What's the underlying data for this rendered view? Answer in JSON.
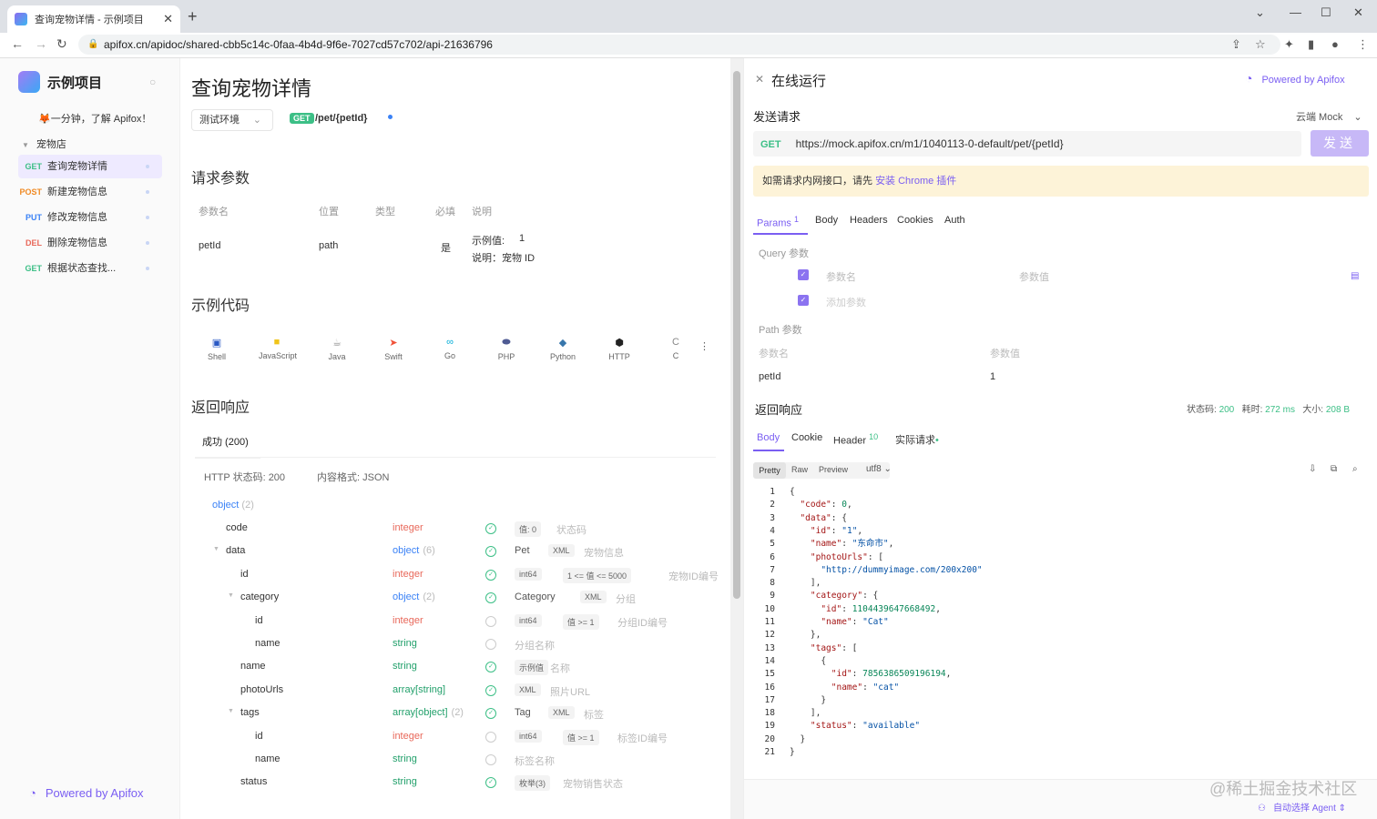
{
  "browser": {
    "tab_title": "查询宠物详情 - 示例项目",
    "url": "apifox.cn/apidoc/shared-cbb5c14c-0faa-4b4d-9f6e-7027cd57c702/api-21636796"
  },
  "sidebar": {
    "project": "示例项目",
    "intro": "🦊一分钟，了解 Apifox！",
    "folder": "宠物店",
    "items": [
      {
        "method": "GET",
        "label": "查询宠物详情",
        "color": "#3cbf86"
      },
      {
        "method": "POST",
        "label": "新建宠物信息",
        "color": "#f08a24"
      },
      {
        "method": "PUT",
        "label": "修改宠物信息",
        "color": "#3b82f6"
      },
      {
        "method": "DEL",
        "label": "删除宠物信息",
        "color": "#e8685a"
      },
      {
        "method": "GET",
        "label": "根据状态查找...",
        "color": "#3cbf86"
      }
    ],
    "powered": "Powered by Apifox"
  },
  "main": {
    "title": "查询宠物详情",
    "env": "测试环境",
    "method": "GET",
    "path": "/pet/{petId}",
    "req_title": "请求参数",
    "cols": [
      "参数名",
      "位置",
      "类型",
      "必填",
      "说明"
    ],
    "param": {
      "name": "petId",
      "pos": "path",
      "required": "是",
      "example": "示例值:",
      "example_val": "1",
      "desc": "说明：宠物 ID"
    },
    "code_title": "示例代码",
    "langs": [
      "Shell",
      "JavaScript",
      "Java",
      "Swift",
      "Go",
      "PHP",
      "Python",
      "HTTP",
      "C"
    ],
    "resp_title": "返回响应",
    "resp_tab": "成功 (200)",
    "status_line": "HTTP 状态码: 200",
    "format_line": "内容格式: JSON",
    "root": "object",
    "root_count": "(2)",
    "fields": [
      {
        "n": "code",
        "t": "integer",
        "c": "int",
        "chk": true,
        "x1": "值: 0",
        "x2": "状态码"
      },
      {
        "n": "data",
        "t": "object",
        "cnt": "(6)",
        "c": "obj",
        "chk": true,
        "x1": "Pet",
        "x2": "XML",
        "x3": "宠物信息"
      },
      {
        "n": "id",
        "t": "integer",
        "c": "int",
        "chk": true,
        "x1": "int64",
        "x2": "1 <= 值 <= 5000",
        "x3": "宠物ID编号"
      },
      {
        "n": "category",
        "t": "object",
        "cnt": "(2)",
        "c": "obj",
        "chk": true,
        "x1": "Category",
        "x2": "XML",
        "x3": "分组"
      },
      {
        "n": "id",
        "t": "integer",
        "c": "int",
        "chk": false,
        "x1": "int64",
        "x2": "值 >= 1",
        "x3": "分组ID编号"
      },
      {
        "n": "name",
        "t": "string",
        "c": "str",
        "chk": false,
        "x1": "分组名称"
      },
      {
        "n": "name",
        "t": "string",
        "c": "str",
        "chk": true,
        "x1": "示例值",
        "x2": "名称"
      },
      {
        "n": "photoUrls",
        "t": "array[string]",
        "c": "str",
        "chk": true,
        "x1": "XML",
        "x2": "照片URL"
      },
      {
        "n": "tags",
        "t": "array[object]",
        "cnt": "(2)",
        "c": "str",
        "chk": true,
        "x1": "Tag",
        "x2": "XML",
        "x3": "标签"
      },
      {
        "n": "id",
        "t": "integer",
        "c": "int",
        "chk": false,
        "x1": "int64",
        "x2": "值 >= 1",
        "x3": "标签ID编号"
      },
      {
        "n": "name",
        "t": "string",
        "c": "str",
        "chk": false,
        "x1": "标签名称"
      },
      {
        "n": "status",
        "t": "string",
        "c": "str",
        "chk": true,
        "x1": "枚举(3)",
        "x2": "宠物销售状态"
      }
    ]
  },
  "panel": {
    "title": "在线运行",
    "powered": "Powered by Apifox",
    "send_title": "发送请求",
    "mock": "云端 Mock",
    "method": "GET",
    "url": "https://mock.apifox.cn/m1/1040113-0-default/pet/{petId}",
    "send": "发送",
    "tip_pre": "如需请求内网接口，请先 ",
    "tip_link": "安装 Chrome 插件",
    "tabs": [
      "Params",
      "Body",
      "Headers",
      "Cookies",
      "Auth"
    ],
    "params_count": "1",
    "query_title": "Query 参数",
    "q_name": "参数名",
    "q_val": "参数值",
    "q_add": "添加参数",
    "path_title": "Path 参数",
    "p_name": "参数名",
    "p_val": "参数值",
    "p_row_name": "petId",
    "p_row_val": "1",
    "resp_title": "返回响应",
    "status_label": "状态码:",
    "status": "200",
    "time_label": "耗时:",
    "time": "272 ms",
    "size_label": "大小:",
    "size": "208 B",
    "rtabs": [
      "Body",
      "Cookie",
      "Header",
      "实际请求"
    ],
    "header_count": "10",
    "fmt": [
      "Pretty",
      "Raw",
      "Preview"
    ],
    "enc": "utf8",
    "code_lines": [
      "{",
      "  \"code\": 0,",
      "  \"data\": {",
      "    \"id\": \"1\",",
      "    \"name\": \"东命市\",",
      "    \"photoUrls\": [",
      "      \"http://dummyimage.com/200x200\"",
      "    ],",
      "    \"category\": {",
      "      \"id\": 1104439647668492,",
      "      \"name\": \"Cat\"",
      "    },",
      "    \"tags\": [",
      "      {",
      "        \"id\": 7856386509196194,",
      "        \"name\": \"cat\"",
      "      }",
      "    ],",
      "    \"status\": \"available\"",
      "  }",
      "}"
    ],
    "agent": "自动选择 Agent"
  },
  "watermark": "@稀土掘金技术社区"
}
